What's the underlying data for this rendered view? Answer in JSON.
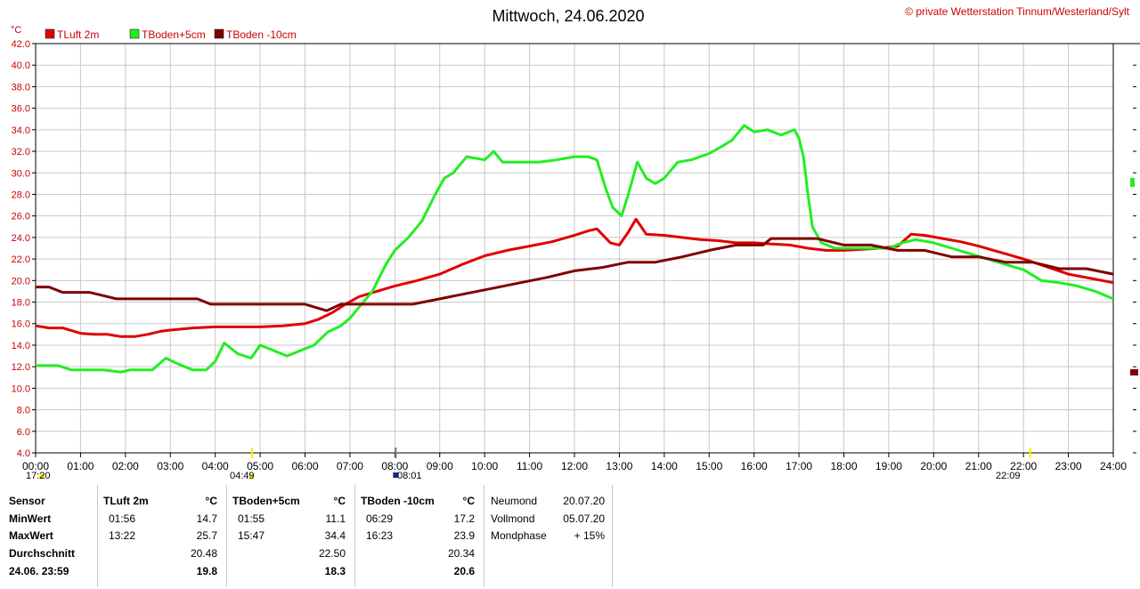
{
  "header": {
    "title": "Mittwoch, 24.06.2020",
    "copyright": "© private Wetterstation Tinnum/Westerland/Sylt",
    "unit": "°C"
  },
  "legend": [
    {
      "label": "TLuft 2m",
      "color": "#e00000"
    },
    {
      "label": "TBoden+5cm",
      "color": "#22ee22"
    },
    {
      "label": "TBoden -10cm",
      "color": "#800000"
    }
  ],
  "chart_data": {
    "type": "line",
    "title": "Mittwoch, 24.06.2020",
    "ylabel": "°C",
    "xlabel": "",
    "xlim": [
      0,
      24
    ],
    "ylim": [
      4,
      42
    ],
    "grid": true,
    "legend_position": "top-left",
    "y_ticks": [
      "42.0",
      "40.0",
      "38.0",
      "36.0",
      "34.0",
      "32.0",
      "30.0",
      "28.0",
      "26.0",
      "24.0",
      "22.0",
      "20.0",
      "18.0",
      "16.0",
      "14.0",
      "12.0",
      "10.0",
      "8.0",
      "6.0",
      "4.0"
    ],
    "x_ticks": [
      "00:00",
      "01:00",
      "02:00",
      "03:00",
      "04:00",
      "05:00",
      "06:00",
      "07:00",
      "08:00",
      "09:00",
      "10:00",
      "11:00",
      "12:00",
      "13:00",
      "14:00",
      "15:00",
      "16:00",
      "17:00",
      "18:00",
      "19:00",
      "20:00",
      "21:00",
      "22:00",
      "23:00",
      "24:00"
    ],
    "series": [
      {
        "name": "TLuft 2m",
        "color": "#e00000",
        "x": [
          0,
          0.3,
          0.6,
          1.0,
          1.3,
          1.6,
          1.9,
          2.2,
          2.5,
          2.8,
          3.0,
          3.5,
          4.0,
          4.5,
          5.0,
          5.5,
          6.0,
          6.3,
          6.6,
          6.9,
          7.2,
          7.6,
          8.0,
          8.5,
          9.0,
          9.5,
          10.0,
          10.5,
          11.0,
          11.5,
          12.0,
          12.3,
          12.5,
          12.8,
          13.0,
          13.2,
          13.37,
          13.6,
          14.0,
          14.4,
          14.8,
          15.2,
          15.6,
          16.0,
          16.4,
          16.8,
          17.2,
          17.6,
          18.0,
          18.4,
          18.8,
          19.2,
          19.5,
          19.8,
          20.2,
          20.6,
          21.0,
          21.5,
          22.0,
          22.5,
          23.0,
          23.5,
          24.0
        ],
        "y": [
          15.8,
          15.6,
          15.6,
          15.1,
          15.0,
          15.0,
          14.8,
          14.8,
          15.0,
          15.3,
          15.4,
          15.6,
          15.7,
          15.7,
          15.7,
          15.8,
          16.0,
          16.4,
          17.0,
          17.8,
          18.5,
          19.0,
          19.5,
          20.0,
          20.6,
          21.5,
          22.3,
          22.8,
          23.2,
          23.6,
          24.2,
          24.6,
          24.8,
          23.5,
          23.3,
          24.5,
          25.7,
          24.3,
          24.2,
          24.0,
          23.8,
          23.7,
          23.5,
          23.5,
          23.4,
          23.3,
          23.0,
          22.8,
          22.8,
          22.9,
          23.0,
          23.2,
          24.3,
          24.2,
          23.9,
          23.6,
          23.2,
          22.6,
          22.0,
          21.3,
          20.6,
          20.2,
          19.8
        ]
      },
      {
        "name": "TBoden+5cm",
        "color": "#22ee22",
        "x": [
          0,
          0.5,
          0.8,
          1.5,
          1.9,
          2.1,
          2.3,
          2.6,
          2.9,
          3.2,
          3.5,
          3.8,
          4.0,
          4.2,
          4.5,
          4.8,
          5.0,
          5.3,
          5.6,
          5.9,
          6.2,
          6.5,
          6.8,
          7.0,
          7.2,
          7.5,
          7.8,
          8.0,
          8.3,
          8.6,
          8.9,
          9.1,
          9.3,
          9.6,
          10.0,
          10.2,
          10.4,
          10.8,
          11.2,
          11.6,
          12.0,
          12.3,
          12.5,
          12.7,
          12.85,
          13.05,
          13.2,
          13.4,
          13.6,
          13.8,
          14.0,
          14.3,
          14.6,
          15.0,
          15.3,
          15.5,
          15.78,
          16.0,
          16.3,
          16.6,
          16.9,
          17.0,
          17.1,
          17.2,
          17.3,
          17.5,
          17.8,
          18.2,
          18.6,
          19.0,
          19.3,
          19.6,
          20.0,
          20.4,
          20.8,
          21.2,
          21.6,
          22.0,
          22.4,
          22.8,
          23.2,
          23.6,
          24.0
        ],
        "y": [
          12.1,
          12.1,
          11.7,
          11.7,
          11.5,
          11.7,
          11.7,
          11.7,
          12.8,
          12.2,
          11.7,
          11.7,
          12.5,
          14.2,
          13.2,
          12.8,
          14.0,
          13.5,
          13.0,
          13.5,
          14.0,
          15.2,
          15.8,
          16.5,
          17.5,
          19.0,
          21.5,
          22.8,
          24.0,
          25.5,
          28.0,
          29.5,
          30.0,
          31.5,
          31.2,
          32.0,
          31.0,
          31.0,
          31.0,
          31.2,
          31.5,
          31.5,
          31.2,
          28.5,
          26.8,
          26.0,
          28.0,
          31.0,
          29.5,
          29.0,
          29.5,
          31.0,
          31.2,
          31.8,
          32.5,
          33.0,
          34.4,
          33.8,
          34.0,
          33.5,
          34.0,
          33.2,
          31.5,
          28.0,
          25.0,
          23.5,
          23.0,
          23.0,
          23.0,
          23.0,
          23.5,
          23.8,
          23.5,
          23.0,
          22.5,
          22.0,
          21.5,
          21.0,
          20.0,
          19.8,
          19.5,
          19.0,
          18.3
        ]
      },
      {
        "name": "TBoden -10cm",
        "color": "#800000",
        "x": [
          0,
          0.3,
          0.6,
          1.2,
          1.8,
          2.4,
          3.0,
          3.6,
          3.9,
          4.2,
          4.8,
          5.4,
          6.0,
          6.48,
          6.8,
          7.2,
          7.8,
          8.4,
          9.0,
          9.6,
          10.2,
          10.8,
          11.4,
          12.0,
          12.6,
          13.2,
          13.8,
          14.4,
          15.0,
          15.6,
          16.2,
          16.38,
          16.8,
          17.4,
          18.0,
          18.6,
          19.2,
          19.8,
          20.4,
          21.0,
          21.6,
          22.2,
          22.8,
          23.4,
          24.0
        ],
        "y": [
          19.4,
          19.4,
          18.9,
          18.9,
          18.3,
          18.3,
          18.3,
          18.3,
          17.8,
          17.8,
          17.8,
          17.8,
          17.8,
          17.2,
          17.8,
          17.8,
          17.8,
          17.8,
          18.3,
          18.8,
          19.3,
          19.8,
          20.3,
          20.9,
          21.2,
          21.7,
          21.7,
          22.2,
          22.8,
          23.3,
          23.3,
          23.9,
          23.9,
          23.9,
          23.3,
          23.3,
          22.8,
          22.8,
          22.2,
          22.2,
          21.7,
          21.7,
          21.1,
          21.1,
          20.6
        ]
      }
    ],
    "annotations": {
      "sunrise": "04:49",
      "sunset": "22:09",
      "moon_event": "08:01",
      "left_label": "17:20",
      "marker_times": [
        4.82,
        8.02,
        22.15
      ]
    }
  },
  "stats": {
    "sensor_header": "Sensor",
    "row_labels": [
      "MinWert",
      "MaxWert",
      "Durchschnitt",
      "24.06. 23:59"
    ],
    "sensors": [
      {
        "name": "TLuft 2m",
        "unit": "°C",
        "min_time": "01:56",
        "min_val": "14.7",
        "max_time": "13:22",
        "max_val": "25.7",
        "avg": "20.48",
        "current": "19.8"
      },
      {
        "name": "TBoden+5cm",
        "unit": "°C",
        "min_time": "01:55",
        "min_val": "11.1",
        "max_time": "15:47",
        "max_val": "34.4",
        "avg": "22.50",
        "current": "18.3"
      },
      {
        "name": "TBoden -10cm",
        "unit": "°C",
        "min_time": "06:29",
        "min_val": "17.2",
        "max_time": "16:23",
        "max_val": "23.9",
        "avg": "20.34",
        "current": "20.6"
      }
    ],
    "moon": [
      {
        "label": "Neumond",
        "value": "20.07.20"
      },
      {
        "label": "Vollmond",
        "value": "05.07.20"
      },
      {
        "label": "Mondphase",
        "value": "+ 15%"
      }
    ]
  }
}
